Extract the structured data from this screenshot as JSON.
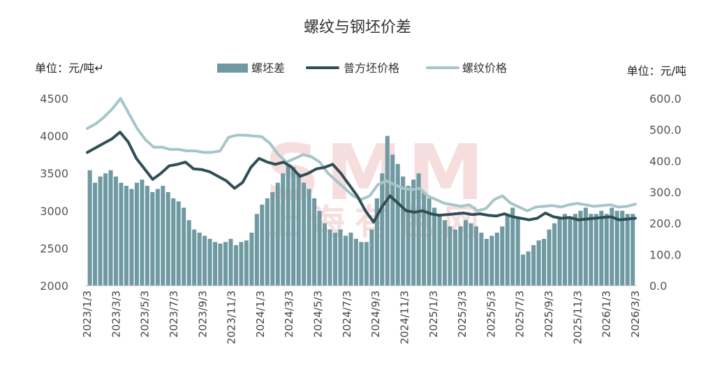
{
  "chart_data": {
    "type": "bar+line",
    "title": "螺纹与钢坯价差",
    "left_unit": "单位：元/吨↵",
    "right_unit": "单位：元/吨",
    "left_axis": {
      "ylim": [
        2000,
        4500
      ],
      "ticks": [
        "4500",
        "4000",
        "3500",
        "3000",
        "2500",
        "2000"
      ]
    },
    "right_axis": {
      "ylim": [
        0,
        600
      ],
      "ticks": [
        "600.0",
        "500.0",
        "400.0",
        "300.0",
        "200.0",
        "100.0",
        "0.0"
      ]
    },
    "x_ticks": [
      "2023/1/3",
      "2023/3/3",
      "2023/5/3",
      "2023/7/3",
      "2023/9/3",
      "2023/11/3",
      "2024/1/3",
      "2024/3/3",
      "2024/5/3",
      "2024/7/3",
      "2024/9/3",
      "2024/11/3",
      "2025/1/3",
      "2025/3/3",
      "2025/5/3",
      "2025/7/3",
      "2025/9/3",
      "2025/11/3",
      "2026/1/3",
      "2026/3/3"
    ],
    "legend": [
      "螺坯差",
      "普方坯价格",
      "螺纹价格"
    ],
    "colors": {
      "spread_bar": "#6f9aa2",
      "billet_line": "#2f4f55",
      "rebar_line": "#a6c6ca"
    },
    "series": [
      {
        "name": "螺坯差",
        "axis": "right",
        "values": [
          370,
          330,
          350,
          360,
          370,
          350,
          330,
          320,
          310,
          330,
          340,
          320,
          300,
          310,
          320,
          300,
          280,
          270,
          250,
          210,
          180,
          170,
          160,
          150,
          140,
          135,
          140,
          150,
          130,
          140,
          145,
          170,
          230,
          260,
          280,
          300,
          330,
          360,
          390,
          380,
          360,
          330,
          310,
          280,
          240,
          200,
          180,
          170,
          180,
          160,
          170,
          150,
          140,
          140,
          180,
          280,
          360,
          480,
          420,
          390,
          350,
          320,
          340,
          360,
          300,
          280,
          250,
          230,
          210,
          190,
          180,
          190,
          210,
          200,
          190,
          170,
          150,
          160,
          170,
          190,
          230,
          250,
          220,
          100,
          110,
          130,
          145,
          150,
          180,
          200,
          220,
          230,
          220,
          230,
          240,
          250,
          230,
          230,
          240,
          230,
          250,
          240,
          240,
          230,
          230
        ]
      },
      {
        "name": "普方坯价格",
        "axis": "left",
        "values": [
          3780,
          3840,
          3900,
          3960,
          4050,
          3920,
          3700,
          3560,
          3420,
          3500,
          3600,
          3620,
          3650,
          3560,
          3550,
          3520,
          3460,
          3400,
          3300,
          3380,
          3580,
          3700,
          3650,
          3620,
          3650,
          3580,
          3460,
          3500,
          3560,
          3580,
          3620,
          3500,
          3350,
          3200,
          3000,
          2850,
          3050,
          3200,
          3100,
          3000,
          2980,
          3000,
          2960,
          2940,
          2950,
          2960,
          2970,
          2950,
          2960,
          2940,
          2930,
          2960,
          2920,
          2900,
          2880,
          2900,
          2970,
          2920,
          2900,
          2910,
          2880,
          2890,
          2900,
          2910,
          2920,
          2880,
          2890,
          2900
        ]
      },
      {
        "name": "螺纹价格",
        "axis": "left",
        "values": [
          4100,
          4160,
          4250,
          4360,
          4500,
          4300,
          4100,
          3950,
          3850,
          3850,
          3820,
          3820,
          3800,
          3800,
          3780,
          3780,
          3800,
          3980,
          4010,
          4010,
          4000,
          3990,
          3900,
          3750,
          3650,
          3700,
          3750,
          3720,
          3650,
          3500,
          3400,
          3300,
          3200,
          3150,
          3200,
          3350,
          3400,
          3350,
          3300,
          3280,
          3300,
          3200,
          3150,
          3100,
          3080,
          3060,
          3080,
          3000,
          3030,
          3150,
          3200,
          3100,
          3050,
          3000,
          3050,
          3060,
          3070,
          3050,
          3080,
          3100,
          3080,
          3060,
          3070,
          3080,
          3050,
          3060,
          3090
        ]
      }
    ]
  }
}
